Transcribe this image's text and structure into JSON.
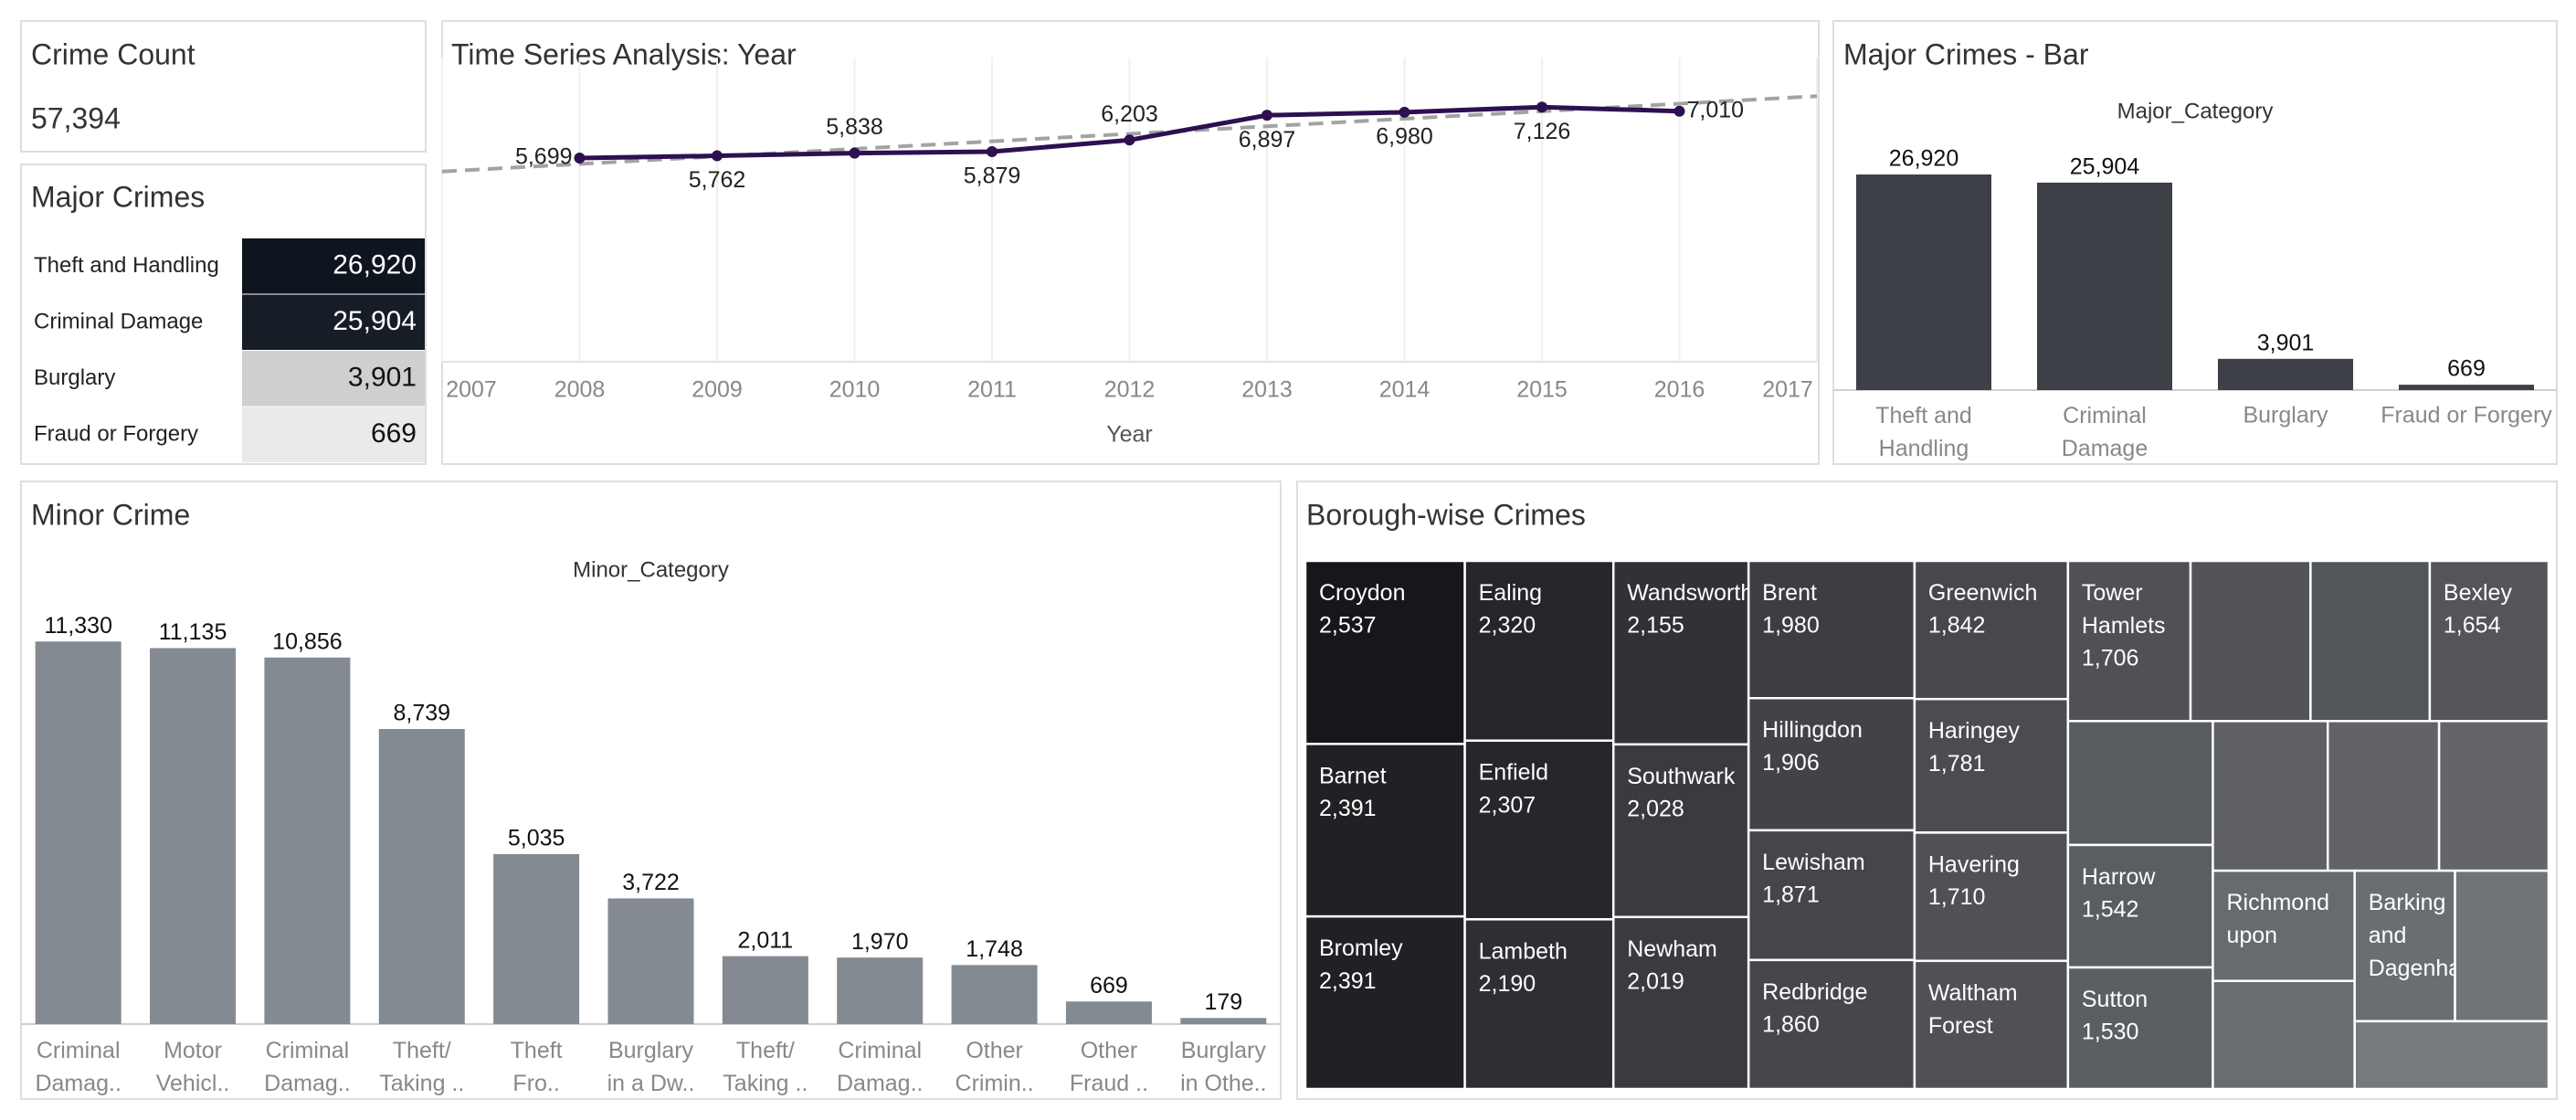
{
  "chart_data": [
    {
      "type": "kpi",
      "title": "Crime Count",
      "value": "57,394"
    },
    {
      "type": "highlight-table",
      "title": "Major Crimes",
      "categories": [
        "Theft and Handling",
        "Criminal Damage",
        "Burglary",
        "Fraud or Forgery"
      ],
      "values": [
        26920,
        25904,
        3901,
        669
      ],
      "value_labels": [
        "26,920",
        "25,904",
        "3,901",
        "669"
      ],
      "color_range": [
        "#efefef",
        "#0e151e"
      ]
    },
    {
      "type": "line",
      "title": "Time Series Analysis: Year",
      "xlabel": "Year",
      "x": [
        2008,
        2009,
        2010,
        2011,
        2012,
        2013,
        2014,
        2015,
        2016
      ],
      "values": [
        5699,
        5762,
        5838,
        5879,
        6203,
        6897,
        6980,
        7126,
        7010
      ],
      "value_labels": [
        "5,699",
        "5,762",
        "5,838",
        "5,879",
        "6,203",
        "6,897",
        "6,980",
        "7,126",
        "7,010"
      ],
      "xlim": [
        2007,
        2017
      ],
      "xticks": [
        2007,
        2008,
        2009,
        2010,
        2011,
        2012,
        2013,
        2014,
        2015,
        2016,
        2017
      ],
      "ylim": [
        0,
        8000
      ],
      "color": "#2e1050",
      "trend_color": "#a3a3a3",
      "grid": true
    },
    {
      "type": "bar",
      "title": "Major Crimes - Bar",
      "subtitle": "Major_Category",
      "categories": [
        "Theft and Handling",
        "Criminal Damage",
        "Burglary",
        "Fraud or Forgery"
      ],
      "values": [
        26920,
        25904,
        3901,
        669
      ],
      "value_labels": [
        "26,920",
        "25,904",
        "3,901",
        "669"
      ],
      "ylim": [
        0,
        30000
      ],
      "color": "#3d4047"
    },
    {
      "type": "bar",
      "title": "Minor Crime",
      "subtitle": "Minor_Category",
      "categories": [
        "Criminal Damag..",
        "Motor Vehicl..",
        "Criminal Damag..",
        "Theft/ Taking ..",
        "Theft Fro..",
        "Burglary in a Dw..",
        "Theft/ Taking ..",
        "Criminal Damag..",
        "Other Crimin..",
        "Other Fraud ..",
        "Burglary in Othe.."
      ],
      "values": [
        11330,
        11135,
        10856,
        8739,
        5035,
        3722,
        2011,
        1970,
        1748,
        669,
        179
      ],
      "value_labels": [
        "11,330",
        "11,135",
        "10,856",
        "8,739",
        "5,035",
        "3,722",
        "2,011",
        "1,970",
        "1,748",
        "669",
        "179"
      ],
      "ylim": [
        0,
        12500
      ],
      "color": "#848a91"
    },
    {
      "type": "treemap",
      "title": "Borough-wise Crimes",
      "categories": [
        "Croydon",
        "Barnet",
        "Bromley",
        "Ealing",
        "Enfield",
        "Lambeth",
        "Wandsworth",
        "Southwark",
        "Newham",
        "Brent",
        "Hillingdon",
        "Lewisham",
        "Redbridge",
        "Greenwich",
        "Haringey",
        "Havering",
        "Waltham Forest",
        "Tower Hamlets",
        null,
        null,
        "Bexley",
        null,
        "Harrow",
        "Sutton",
        null,
        null,
        null,
        "Richmond upon",
        null,
        "Barking and Dagenham",
        null,
        null
      ],
      "values": [
        2537,
        2391,
        2391,
        2320,
        2307,
        2190,
        2155,
        2028,
        2019,
        1980,
        1906,
        1871,
        1860,
        1842,
        1781,
        1710,
        1708,
        1706,
        1670,
        1660,
        1654,
        1560,
        1542,
        1530,
        1494,
        1448,
        1424,
        1358,
        1331,
        1313,
        1224,
        1141
      ],
      "value_labels": [
        "2,537",
        "2,391",
        "2,391",
        "2,320",
        "2,307",
        "2,190",
        "2,155",
        "2,028",
        "2,019",
        "1,980",
        "1,906",
        "1,871",
        "1,860",
        "1,842",
        "1,781",
        "1,710",
        null,
        "1,706",
        null,
        null,
        "1,654",
        null,
        "1,542",
        "1,530",
        null,
        null,
        null,
        null,
        null,
        null,
        null,
        null
      ],
      "color_range": [
        "#76797e",
        "#16171a"
      ]
    }
  ]
}
